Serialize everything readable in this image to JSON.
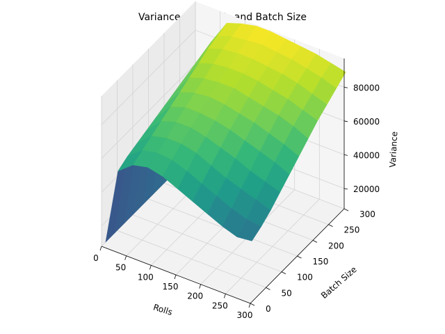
{
  "chart_data": {
    "type": "surface3d",
    "title": "Variance over Rolls and Batch Size",
    "xlabel": "Rolls",
    "ylabel": "Batch Size",
    "zlabel": "Variance",
    "xlim": [
      0,
      300
    ],
    "ylim": [
      0,
      300
    ],
    "zlim": [
      8000,
      97000
    ],
    "x_ticks": [
      0,
      50,
      100,
      150,
      200,
      250,
      300
    ],
    "y_ticks": [
      0,
      50,
      100,
      150,
      200,
      250,
      300
    ],
    "z_ticks": [
      20000,
      40000,
      60000,
      80000
    ],
    "colormap": "viridis",
    "grid": true,
    "rolls": [
      5,
      30,
      60,
      90,
      120,
      150,
      180,
      210,
      240,
      270,
      300
    ],
    "batch_sizes": [
      5,
      35,
      65,
      95,
      125,
      155,
      185,
      215,
      245,
      275,
      305
    ],
    "values": [
      [
        10000,
        10000,
        10000,
        10000,
        10000,
        10000,
        10000,
        10000,
        10000,
        10000,
        10000
      ],
      [
        55000,
        58000,
        60000,
        62000,
        64000,
        66000,
        68000,
        70000,
        72000,
        74000,
        76000
      ],
      [
        62000,
        65000,
        68000,
        71000,
        74000,
        77000,
        80000,
        83000,
        86000,
        88000,
        90000
      ],
      [
        64000,
        67000,
        70000,
        74000,
        77000,
        80000,
        83000,
        86000,
        89000,
        91000,
        93000
      ],
      [
        62000,
        66000,
        70000,
        74000,
        77000,
        81000,
        84000,
        87000,
        90000,
        92000,
        95000
      ],
      [
        58000,
        63000,
        68000,
        72000,
        76000,
        80000,
        84000,
        87000,
        90000,
        93000,
        95000
      ],
      [
        54000,
        59000,
        64000,
        69000,
        74000,
        78000,
        82000,
        86000,
        89000,
        92000,
        94000
      ],
      [
        50000,
        55000,
        60000,
        66000,
        71000,
        76000,
        80000,
        84000,
        88000,
        91000,
        93000
      ],
      [
        46000,
        51000,
        57000,
        62000,
        68000,
        73000,
        78000,
        82000,
        86000,
        89000,
        92000
      ],
      [
        43000,
        48000,
        54000,
        59000,
        65000,
        70000,
        75000,
        79000,
        83000,
        87000,
        90000
      ],
      [
        44000,
        47000,
        51000,
        56000,
        61000,
        66000,
        71000,
        76000,
        80000,
        84000,
        88000
      ]
    ]
  }
}
